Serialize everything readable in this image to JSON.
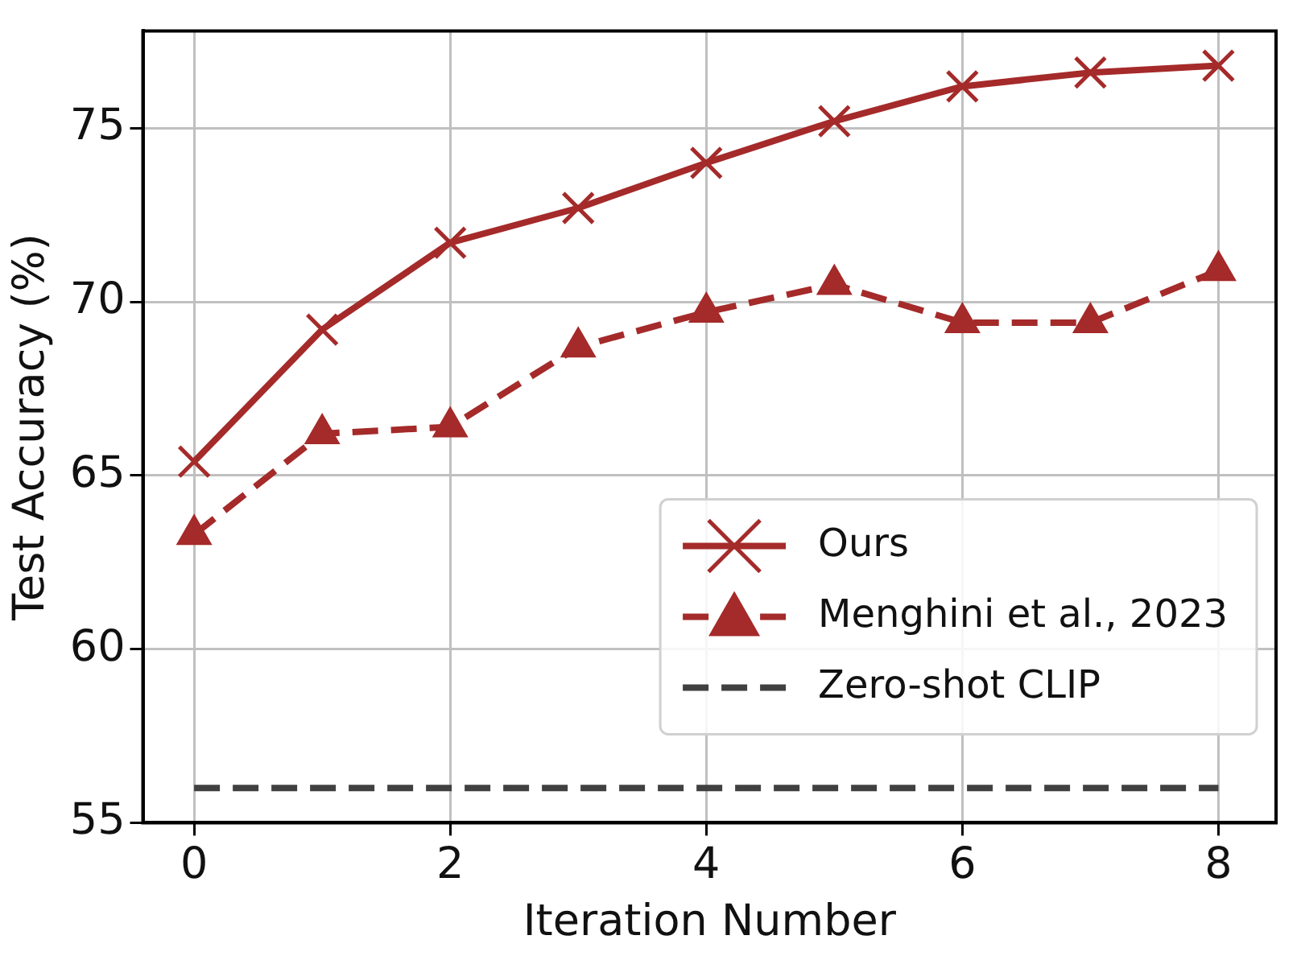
{
  "chart_data": {
    "type": "line",
    "xlabel": "Iteration Number",
    "ylabel": "Test Accuracy (%)",
    "xlim": [
      -0.4,
      8.45
    ],
    "xticks": [
      0,
      2,
      4,
      6,
      8
    ],
    "ylim": [
      55,
      77.8
    ],
    "yticks": [
      55,
      60,
      65,
      70,
      75
    ],
    "grid": true,
    "legend": "bottom right",
    "series": [
      {
        "name": "Ours",
        "color": "#a52a2a",
        "marker": "cross",
        "line_style": "solid",
        "x": [
          0,
          1,
          2,
          3,
          4,
          5,
          6,
          7,
          8
        ],
        "values": [
          65.4,
          69.2,
          71.7,
          72.7,
          74.0,
          75.2,
          76.2,
          76.6,
          76.8
        ]
      },
      {
        "name": "Menghini et al., 2023",
        "color": "#a52a2a",
        "marker": "triangle",
        "line_style": "dashed",
        "x": [
          0,
          1,
          2,
          3,
          4,
          5,
          6,
          7,
          8
        ],
        "values": [
          63.3,
          66.2,
          66.4,
          68.7,
          69.7,
          70.5,
          69.4,
          69.4,
          70.9
        ]
      },
      {
        "name": "Zero-shot CLIP",
        "color": "#404040",
        "marker": "none",
        "line_style": "dashed",
        "x": [
          0,
          8
        ],
        "values": [
          56.0,
          56.0
        ]
      }
    ]
  }
}
